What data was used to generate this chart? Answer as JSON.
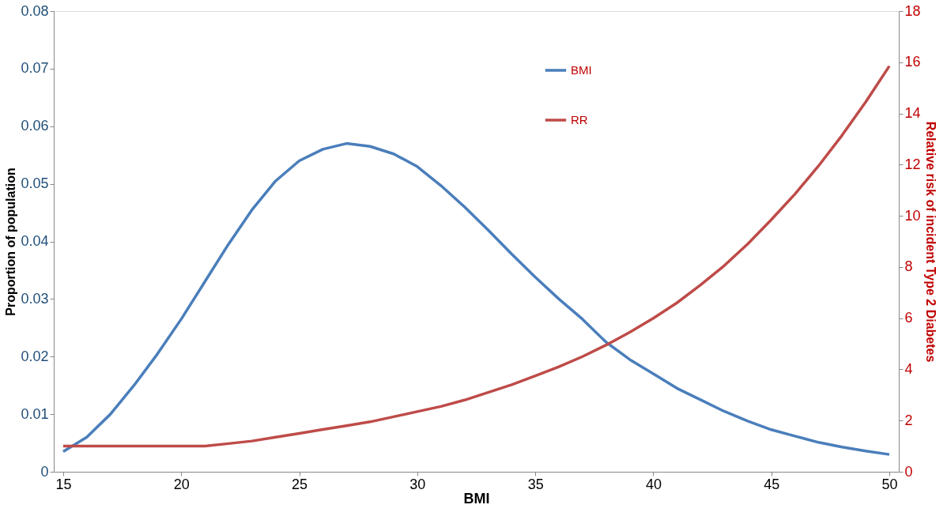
{
  "chart_data": {
    "type": "line",
    "xlabel": "BMI",
    "ylabel": "Proportion of population",
    "y2label": "Relative risk of incident Type 2 Diabetes",
    "x": [
      15,
      16,
      17,
      18,
      19,
      20,
      21,
      22,
      23,
      24,
      25,
      26,
      27,
      28,
      29,
      30,
      31,
      32,
      33,
      34,
      35,
      36,
      37,
      38,
      39,
      40,
      41,
      42,
      43,
      44,
      45,
      46,
      47,
      48,
      49,
      50
    ],
    "series": [
      {
        "name": "BMI",
        "color": "#4a7ebb",
        "values": [
          0.0035,
          0.006,
          0.01,
          0.015,
          0.0205,
          0.0265,
          0.033,
          0.0395,
          0.0455,
          0.0505,
          0.054,
          0.056,
          0.057,
          0.0565,
          0.0552,
          0.053,
          0.0497,
          0.046,
          0.042,
          0.0378,
          0.0338,
          0.03,
          0.0265,
          0.0225,
          0.0195,
          0.017,
          0.0145,
          0.0125,
          0.0105,
          0.0088,
          0.0073,
          0.0062,
          0.0051,
          0.0043,
          0.0036,
          0.003
        ]
      },
      {
        "name": "RR",
        "color": "#be4b48",
        "axis": "y2",
        "values": [
          1,
          1,
          1,
          1,
          1,
          1,
          1,
          1.1,
          1.2,
          1.35,
          1.5,
          1.65,
          1.8,
          1.95,
          2.15,
          2.35,
          2.55,
          2.8,
          3.1,
          3.4,
          3.75,
          4.1,
          4.5,
          4.95,
          5.45,
          6.0,
          6.6,
          7.3,
          8.05,
          8.9,
          9.85,
          10.85,
          11.95,
          13.15,
          14.45,
          15.85
        ]
      }
    ],
    "xlim": [
      14.6,
      50.4
    ],
    "xticks": [
      15,
      20,
      25,
      30,
      35,
      40,
      45,
      50
    ],
    "ylim": [
      0,
      0.08
    ],
    "yticks": [
      0,
      0.01,
      0.02,
      0.03,
      0.04,
      0.05,
      0.06,
      0.07,
      0.08
    ],
    "y2lim": [
      0,
      18
    ],
    "y2ticks": [
      0,
      2,
      4,
      6,
      8,
      10,
      12,
      14,
      16,
      18
    ],
    "grid": false,
    "legend": "top right",
    "marker": "none",
    "line_style": "solid"
  }
}
